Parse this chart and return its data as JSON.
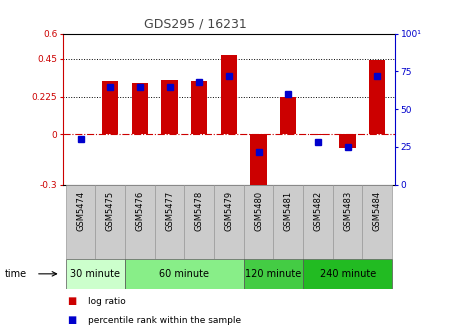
{
  "title": "GDS295 / 16231",
  "samples": [
    "GSM5474",
    "GSM5475",
    "GSM5476",
    "GSM5477",
    "GSM5478",
    "GSM5479",
    "GSM5480",
    "GSM5481",
    "GSM5482",
    "GSM5483",
    "GSM5484"
  ],
  "log_ratio": [
    0.0,
    0.32,
    0.305,
    0.325,
    0.32,
    0.47,
    -0.32,
    0.225,
    -0.005,
    -0.08,
    0.44
  ],
  "percentile": [
    30,
    65,
    65,
    65,
    68,
    72,
    22,
    60,
    28,
    25,
    72
  ],
  "ylim_left": [
    -0.3,
    0.6
  ],
  "ylim_right": [
    0,
    100
  ],
  "yticks_left": [
    -0.3,
    0,
    0.225,
    0.45,
    0.6
  ],
  "yticks_right": [
    0,
    25,
    50,
    75,
    100
  ],
  "ytick_labels_left": [
    "-0.3",
    "0",
    "0.225",
    "0.45",
    "0.6"
  ],
  "ytick_labels_right": [
    "0",
    "25",
    "50",
    "75",
    "100¹"
  ],
  "hlines": [
    0.225,
    0.45
  ],
  "bar_color": "#cc0000",
  "dot_color": "#0000cc",
  "zero_line_color": "#cc0000",
  "groups": [
    {
      "label": "30 minute",
      "start": 0,
      "end": 2,
      "color": "#ccffcc"
    },
    {
      "label": "60 minute",
      "start": 2,
      "end": 6,
      "color": "#88ee88"
    },
    {
      "label": "120 minute",
      "start": 6,
      "end": 8,
      "color": "#44cc44"
    },
    {
      "label": "240 minute",
      "start": 8,
      "end": 11,
      "color": "#22bb22"
    }
  ],
  "time_label": "time",
  "legend_bar_label": "log ratio",
  "legend_dot_label": "percentile rank within the sample",
  "bg_xticklabels": "#cccccc",
  "title_color": "#444444",
  "title_fontsize": 9,
  "bar_width": 0.55
}
